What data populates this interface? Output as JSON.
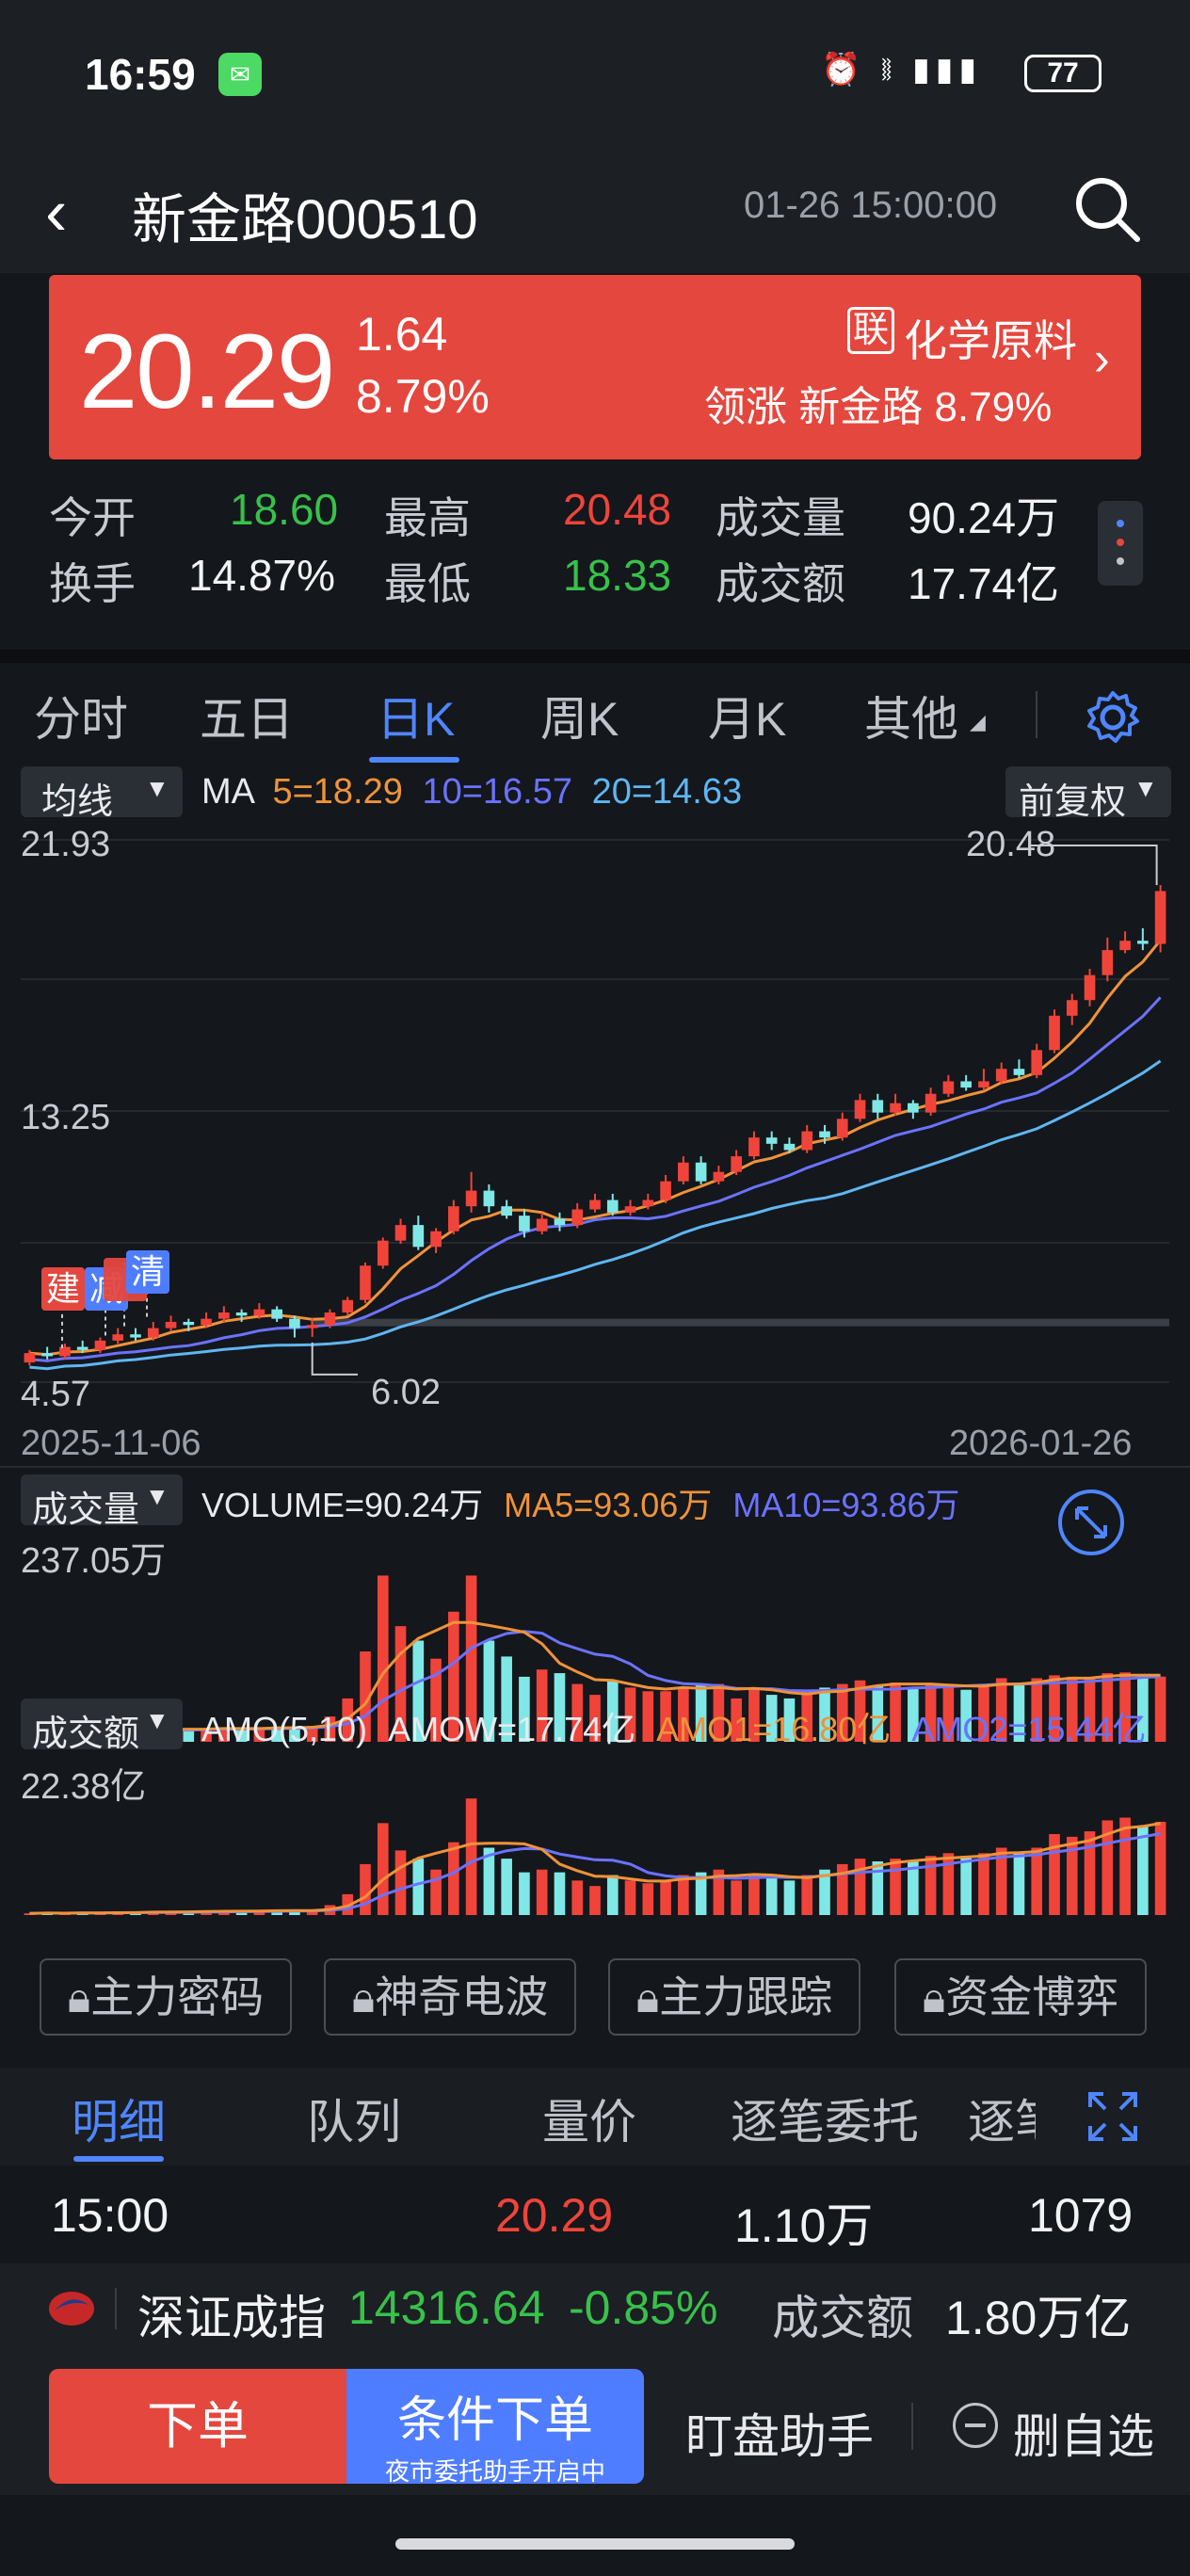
{
  "status_bar": {
    "time": "16:59",
    "battery": "77"
  },
  "nav": {
    "title": "新金路000510",
    "datetime": "01-26 15:00:00"
  },
  "quote": {
    "price": "20.29",
    "change": "1.64",
    "change_pct": "8.79%",
    "industry_tag": "联",
    "industry": "化学原料",
    "leader_label": "领涨",
    "leader": "新金路 8.79%"
  },
  "stats": {
    "open_label": "今开",
    "open": "18.60",
    "high_label": "最高",
    "high": "20.48",
    "volume_label": "成交量",
    "volume": "90.24万",
    "turnover_label": "换手",
    "turnover": "14.87%",
    "low_label": "最低",
    "low": "18.33",
    "amount_label": "成交额",
    "amount": "17.74亿"
  },
  "tabs": [
    "分时",
    "五日",
    "日K",
    "周K",
    "月K",
    "其他"
  ],
  "kline": {
    "ma_dropdown": "均线",
    "ma_label": "MA",
    "ma5": "5=18.29",
    "ma10": "10=16.57",
    "ma20": "20=14.63",
    "adj_dropdown": "前复权",
    "y_top": "21.93",
    "y_mid": "13.25",
    "y_bottom": "4.57",
    "max_label": "20.48",
    "min_label": "6.02",
    "date_start": "2025-11-06",
    "date_end": "2026-01-26",
    "markers": [
      "建",
      "减",
      "清"
    ]
  },
  "volume_panel": {
    "dropdown": "成交量",
    "volume": "VOLUME=90.24万",
    "ma5": "MA5=93.06万",
    "ma10": "MA10=93.86万",
    "y_top": "237.05万"
  },
  "amount_panel": {
    "dropdown": "成交额",
    "amo_label": "AMO(5,10)",
    "amow": "AMOW=17.74亿",
    "amo1": "AMO1=16.80亿",
    "amo2": "AMO2=15.44亿",
    "y_top": "22.38亿"
  },
  "locked_tools": [
    "主力密码",
    "神奇电波",
    "主力跟踪",
    "资金博弈"
  ],
  "lower_tabs": [
    "明细",
    "队列",
    "量价",
    "逐笔委托",
    "逐笔"
  ],
  "detail": {
    "time": "15:00",
    "price": "20.29",
    "volume": "1.10万",
    "count": "1079"
  },
  "index": {
    "name": "深证成指",
    "value": "14316.64",
    "change": "-0.85%",
    "amount_label": "成交额",
    "amount": "1.80万亿"
  },
  "bottom": {
    "order": "下单",
    "conditional": "条件下单",
    "conditional_sub": "夜市委托助手开启中",
    "monitor": "盯盘助手",
    "remove_watch": "删自选"
  },
  "colors": {
    "up": "#f0443a",
    "down_candle": "#7fe8e6",
    "down_text": "#37c24a",
    "accent": "#4f86ff",
    "ma5": "#f0923a",
    "ma10": "#6b72ff",
    "ma20": "#5fb6f2"
  },
  "chart_data": {
    "type": "candlestick",
    "x_start": "2025-11-06",
    "x_end": "2026-01-26",
    "ylim": [
      4.57,
      21.93
    ],
    "candles": [
      [
        5.2,
        5.5,
        5.1,
        5.6
      ],
      [
        5.5,
        5.4,
        5.3,
        5.7
      ],
      [
        5.4,
        5.7,
        5.3,
        5.8
      ],
      [
        5.7,
        5.6,
        5.5,
        5.9
      ],
      [
        5.6,
        5.9,
        5.5,
        6.0
      ],
      [
        5.9,
        6.1,
        5.8,
        6.3
      ],
      [
        6.1,
        6.0,
        5.9,
        6.3
      ],
      [
        6.0,
        6.3,
        5.9,
        6.5
      ],
      [
        6.3,
        6.5,
        6.2,
        6.7
      ],
      [
        6.5,
        6.4,
        6.2,
        6.6
      ],
      [
        6.4,
        6.6,
        6.3,
        6.8
      ],
      [
        6.6,
        6.8,
        6.5,
        7.0
      ],
      [
        6.8,
        6.7,
        6.5,
        6.9
      ],
      [
        6.7,
        6.9,
        6.6,
        7.1
      ],
      [
        6.9,
        6.6,
        6.5,
        7.0
      ],
      [
        6.6,
        6.3,
        6.0,
        6.7
      ],
      [
        6.3,
        6.4,
        6.02,
        6.6
      ],
      [
        6.4,
        6.8,
        6.3,
        6.9
      ],
      [
        6.8,
        7.2,
        6.7,
        7.3
      ],
      [
        7.2,
        8.3,
        7.1,
        8.4
      ],
      [
        8.3,
        9.1,
        8.2,
        9.2
      ],
      [
        9.1,
        9.6,
        9.0,
        9.8
      ],
      [
        9.6,
        8.9,
        8.8,
        9.9
      ],
      [
        8.9,
        9.4,
        8.7,
        9.5
      ],
      [
        9.4,
        10.2,
        9.3,
        10.4
      ],
      [
        10.2,
        10.7,
        10.0,
        11.3
      ],
      [
        10.7,
        10.2,
        10.0,
        10.9
      ],
      [
        10.2,
        9.9,
        9.8,
        10.4
      ],
      [
        9.9,
        9.4,
        9.2,
        10.1
      ],
      [
        9.4,
        9.8,
        9.3,
        10.0
      ],
      [
        9.8,
        9.6,
        9.4,
        10.0
      ],
      [
        9.6,
        10.1,
        9.5,
        10.3
      ],
      [
        10.1,
        10.4,
        10.0,
        10.6
      ],
      [
        10.4,
        10.0,
        9.9,
        10.6
      ],
      [
        10.0,
        10.2,
        9.9,
        10.4
      ],
      [
        10.2,
        10.4,
        10.1,
        10.6
      ],
      [
        10.4,
        11.0,
        10.3,
        11.2
      ],
      [
        11.0,
        11.6,
        10.9,
        11.8
      ],
      [
        11.6,
        11.0,
        10.9,
        11.8
      ],
      [
        11.0,
        11.3,
        10.9,
        11.5
      ],
      [
        11.3,
        11.8,
        11.2,
        12.0
      ],
      [
        11.8,
        12.4,
        11.7,
        12.6
      ],
      [
        12.4,
        12.2,
        12.0,
        12.6
      ],
      [
        12.2,
        12.0,
        11.9,
        12.4
      ],
      [
        12.0,
        12.6,
        11.9,
        12.8
      ],
      [
        12.6,
        12.4,
        12.2,
        12.8
      ],
      [
        12.4,
        13.0,
        12.3,
        13.2
      ],
      [
        13.0,
        13.6,
        12.9,
        13.8
      ],
      [
        13.6,
        13.2,
        13.0,
        13.8
      ],
      [
        13.2,
        13.5,
        13.1,
        13.8
      ],
      [
        13.5,
        13.2,
        13.0,
        13.6
      ],
      [
        13.2,
        13.8,
        13.1,
        14.0
      ],
      [
        13.8,
        14.2,
        13.7,
        14.4
      ],
      [
        14.2,
        14.0,
        13.9,
        14.4
      ],
      [
        14.0,
        14.2,
        13.9,
        14.6
      ],
      [
        14.2,
        14.6,
        14.1,
        14.8
      ],
      [
        14.6,
        14.4,
        14.3,
        14.9
      ],
      [
        14.4,
        15.2,
        14.3,
        15.4
      ],
      [
        15.2,
        16.3,
        15.1,
        16.5
      ],
      [
        16.3,
        16.8,
        16.0,
        17.0
      ],
      [
        16.8,
        17.6,
        16.6,
        17.8
      ],
      [
        17.6,
        18.4,
        17.4,
        18.8
      ],
      [
        18.4,
        18.7,
        18.3,
        19.0
      ],
      [
        18.7,
        18.6,
        18.4,
        19.1
      ],
      [
        18.6,
        20.29,
        18.33,
        20.48
      ]
    ],
    "ma5_end": 18.29,
    "ma10_end": 16.57,
    "ma20_end": 14.63,
    "volume_max_wan": 237.05,
    "volume_wan": [
      14,
      16,
      14,
      18,
      15,
      17,
      16,
      19,
      18,
      17,
      18,
      20,
      19,
      18,
      21,
      20,
      22,
      35,
      60,
      125,
      230,
      160,
      140,
      115,
      180,
      230,
      140,
      118,
      90,
      100,
      95,
      80,
      65,
      85,
      75,
      70,
      70,
      75,
      80,
      80,
      60,
      75,
      65,
      60,
      70,
      75,
      80,
      85,
      78,
      82,
      75,
      80,
      78,
      72,
      80,
      88,
      82,
      88,
      92,
      90,
      88,
      95,
      96,
      92,
      90.24
    ],
    "amount_max_yi": 22.38,
    "amount_yi": [
      1.0,
      1.1,
      1.0,
      1.2,
      1.1,
      1.2,
      1.2,
      1.4,
      1.3,
      1.3,
      1.4,
      1.5,
      1.5,
      1.4,
      1.6,
      1.5,
      1.5,
      2.5,
      4.5,
      10.0,
      17.5,
      12.5,
      11.0,
      9.0,
      14.0,
      22.0,
      13.0,
      11.0,
      8.5,
      9.0,
      8.5,
      7.0,
      6.0,
      8.0,
      7.0,
      6.5,
      7.0,
      8.0,
      8.5,
      9.0,
      7.0,
      8.0,
      7.5,
      7.0,
      8.0,
      9.0,
      10.0,
      11.0,
      10.5,
      11.0,
      10.5,
      11.5,
      12.0,
      11.5,
      12.0,
      13.0,
      12.0,
      13.0,
      15.5,
      15.0,
      16.0,
      18.0,
      18.5,
      17.0,
      17.74
    ]
  }
}
